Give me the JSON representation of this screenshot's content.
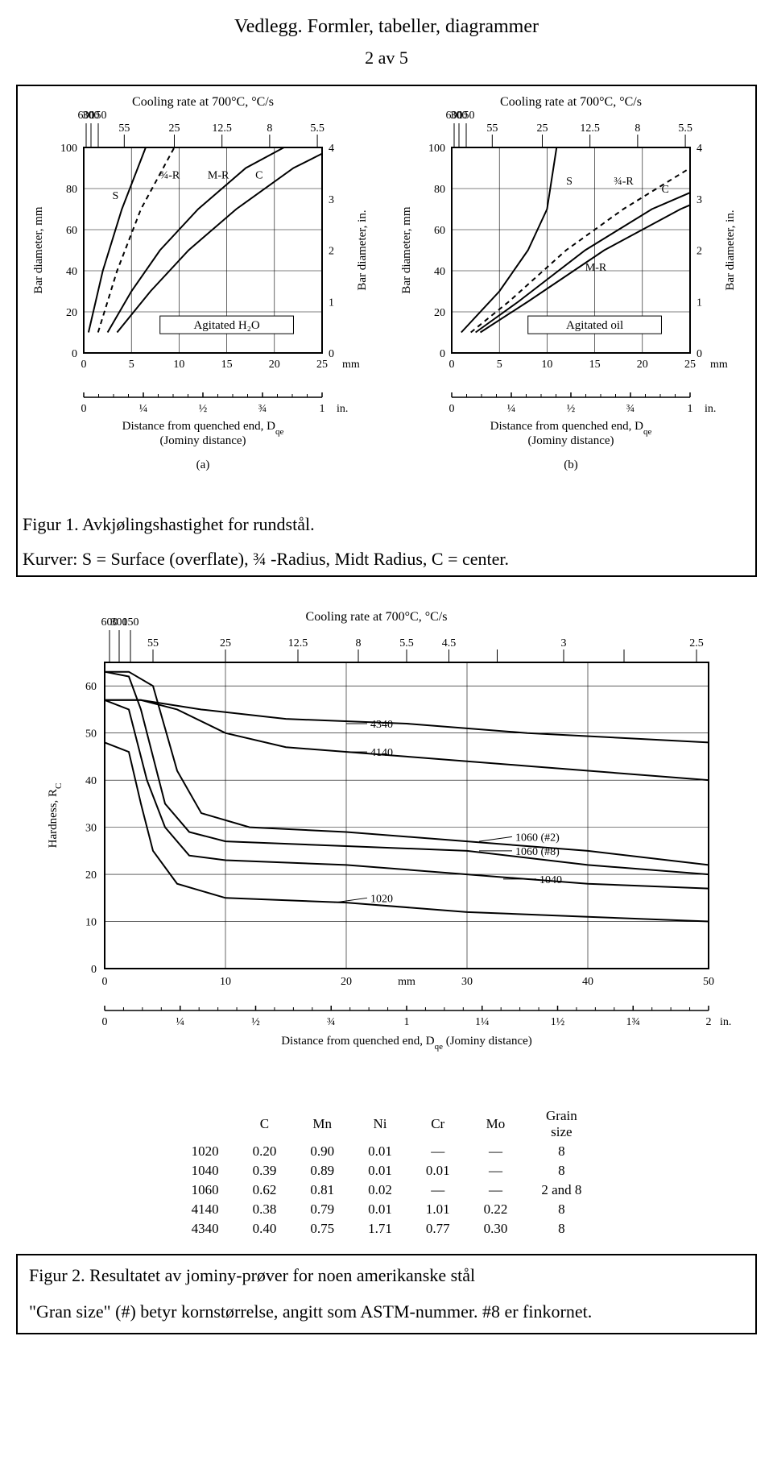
{
  "header": {
    "title": "Vedlegg. Formler, tabeller, diagrammer",
    "page": "2 av 5"
  },
  "figure1": {
    "caption_line1": "Figur 1. Avkjølingshastighet for rundstål.",
    "caption_line2": "Kurver: S = Surface (overflate), ¾ -Radius, Midt Radius, C = center.",
    "chart_a": {
      "type": "line",
      "top_title": "Cooling rate at 700°C, °C/s",
      "top_ticks": [
        "600",
        "300",
        "150",
        "55",
        "25",
        "12.5",
        "8",
        "5.5"
      ],
      "y_left_label": "Bar diameter, mm",
      "y_right_label": "Bar diameter, in.",
      "y_left_ticks": [
        0,
        20,
        40,
        60,
        80,
        100
      ],
      "y_right_ticks": [
        0,
        1,
        2,
        3,
        4
      ],
      "x_ticks_mm": [
        0,
        5,
        10,
        15,
        20,
        25
      ],
      "x_unit_mm": "mm",
      "inset_label": "Agitated H₂O",
      "curve_labels": [
        "S",
        "¾-R",
        "M-R",
        "C"
      ],
      "second_x_ticks": [
        "0",
        "¼",
        "½",
        "¾",
        "1"
      ],
      "second_x_unit": "in.",
      "second_x_title_l1": "Distance from quenched end, D",
      "second_x_title_sub": "qe",
      "second_x_title_l2": "(Jominy distance)",
      "sub_label": "(a)",
      "xlim": [
        0,
        25
      ],
      "ylim": [
        0,
        100
      ],
      "line_color": "#000000",
      "background_color": "#ffffff",
      "grid_color": "#000000",
      "curves": {
        "S": [
          [
            0.5,
            10
          ],
          [
            2,
            40
          ],
          [
            4,
            70
          ],
          [
            6.5,
            100
          ]
        ],
        "3_4R": [
          [
            1.5,
            10
          ],
          [
            3.5,
            40
          ],
          [
            6,
            70
          ],
          [
            9.5,
            100
          ]
        ],
        "MR": [
          [
            2.5,
            10
          ],
          [
            5,
            30
          ],
          [
            8,
            50
          ],
          [
            12,
            70
          ],
          [
            17,
            90
          ],
          [
            21,
            100
          ]
        ],
        "C": [
          [
            3.5,
            10
          ],
          [
            7,
            30
          ],
          [
            11,
            50
          ],
          [
            16,
            70
          ],
          [
            22,
            90
          ],
          [
            25,
            97
          ]
        ]
      }
    },
    "chart_b": {
      "type": "line",
      "top_title": "Cooling rate at 700°C, °C/s",
      "top_ticks": [
        "600",
        "300",
        "150",
        "55",
        "25",
        "12.5",
        "8",
        "5.5"
      ],
      "y_left_label": "Bar diameter, mm",
      "y_right_label": "Bar diameter, in.",
      "y_left_ticks": [
        0,
        20,
        40,
        60,
        80,
        100
      ],
      "y_right_ticks": [
        0,
        1,
        2,
        3,
        4
      ],
      "x_ticks_mm": [
        0,
        5,
        10,
        15,
        20,
        25
      ],
      "x_unit_mm": "mm",
      "inset_label": "Agitated oil",
      "curve_labels": [
        "S",
        "¾-R",
        "M-R",
        "C"
      ],
      "second_x_ticks": [
        "0",
        "¼",
        "½",
        "¾",
        "1"
      ],
      "second_x_unit": "in.",
      "second_x_title_l1": "Distance from quenched end, D",
      "second_x_title_sub": "qe",
      "second_x_title_l2": "(Jominy distance)",
      "sub_label": "(b)",
      "xlim": [
        0,
        25
      ],
      "ylim": [
        0,
        100
      ],
      "line_color": "#000000",
      "background_color": "#ffffff",
      "grid_color": "#000000",
      "curves": {
        "S": [
          [
            1,
            10
          ],
          [
            5,
            30
          ],
          [
            8,
            50
          ],
          [
            10,
            70
          ],
          [
            11,
            100
          ]
        ],
        "3_4R": [
          [
            2,
            10
          ],
          [
            6,
            25
          ],
          [
            12,
            50
          ],
          [
            18,
            70
          ],
          [
            25,
            90
          ]
        ],
        "MR": [
          [
            2.5,
            10
          ],
          [
            7,
            25
          ],
          [
            14,
            50
          ],
          [
            21,
            70
          ],
          [
            25,
            78
          ]
        ],
        "C": [
          [
            3,
            10
          ],
          [
            8,
            25
          ],
          [
            16,
            50
          ],
          [
            24,
            70
          ],
          [
            25,
            72
          ]
        ]
      }
    }
  },
  "figure2": {
    "chart": {
      "type": "line",
      "top_title": "Cooling rate at 700°C, °C/s",
      "top_ticks_left": [
        "600",
        "300",
        "150"
      ],
      "top_ticks": [
        "55",
        "25",
        "12.5",
        "8",
        "5.5",
        "4.5",
        "",
        "3",
        "",
        "2.5"
      ],
      "y_label": "Hardness, R",
      "y_sub": "C",
      "y_ticks": [
        0,
        10,
        20,
        30,
        40,
        50,
        60
      ],
      "x_ticks_mm": [
        0,
        10,
        20,
        30,
        40,
        50
      ],
      "x_unit_mm": "mm",
      "labels_inline": [
        "4340",
        "4140",
        "1060 (#2)",
        "1060 (#8)",
        "1040",
        "1020"
      ],
      "second_x_ticks": [
        "0",
        "¼",
        "½",
        "¾",
        "1",
        "1¼",
        "1½",
        "1¾",
        "2"
      ],
      "second_x_unit": "in.",
      "second_x_title": "Distance from quenched end, D",
      "second_x_title_sub": "qe",
      "second_x_paren": " (Jominy distance)",
      "xlim": [
        0,
        50
      ],
      "ylim": [
        0,
        65
      ],
      "line_color": "#000000",
      "background_color": "#ffffff",
      "grid_color": "#000000",
      "curves": {
        "4340": [
          [
            0,
            57
          ],
          [
            3,
            57
          ],
          [
            8,
            55
          ],
          [
            15,
            53
          ],
          [
            25,
            52
          ],
          [
            35,
            50
          ],
          [
            50,
            48
          ]
        ],
        "4140": [
          [
            0,
            57
          ],
          [
            3,
            57
          ],
          [
            6,
            55
          ],
          [
            10,
            50
          ],
          [
            15,
            47
          ],
          [
            25,
            45
          ],
          [
            35,
            43
          ],
          [
            50,
            40
          ]
        ],
        "1060_2": [
          [
            0,
            63
          ],
          [
            2,
            63
          ],
          [
            4,
            60
          ],
          [
            6,
            42
          ],
          [
            8,
            33
          ],
          [
            12,
            30
          ],
          [
            20,
            29
          ],
          [
            30,
            27
          ],
          [
            40,
            25
          ],
          [
            50,
            22
          ]
        ],
        "1060_8": [
          [
            0,
            63
          ],
          [
            2,
            62
          ],
          [
            3,
            55
          ],
          [
            5,
            35
          ],
          [
            7,
            29
          ],
          [
            10,
            27
          ],
          [
            20,
            26
          ],
          [
            30,
            25
          ],
          [
            40,
            22
          ],
          [
            50,
            20
          ]
        ],
        "1040": [
          [
            0,
            57
          ],
          [
            2,
            55
          ],
          [
            3.5,
            40
          ],
          [
            5,
            30
          ],
          [
            7,
            24
          ],
          [
            10,
            23
          ],
          [
            20,
            22
          ],
          [
            30,
            20
          ],
          [
            40,
            18
          ],
          [
            50,
            17
          ]
        ],
        "1020": [
          [
            0,
            48
          ],
          [
            2,
            46
          ],
          [
            3,
            35
          ],
          [
            4,
            25
          ],
          [
            6,
            18
          ],
          [
            10,
            15
          ],
          [
            20,
            14
          ],
          [
            30,
            12
          ],
          [
            40,
            11
          ],
          [
            50,
            10
          ]
        ]
      }
    },
    "comp_table": {
      "headers": [
        "",
        "C",
        "Mn",
        "Ni",
        "Cr",
        "Mo",
        "Grain size"
      ],
      "rows": [
        [
          "1020",
          "0.20",
          "0.90",
          "0.01",
          "—",
          "—",
          "8"
        ],
        [
          "1040",
          "0.39",
          "0.89",
          "0.01",
          "0.01",
          "—",
          "8"
        ],
        [
          "1060",
          "0.62",
          "0.81",
          "0.02",
          "—",
          "—",
          "2 and 8"
        ],
        [
          "4140",
          "0.38",
          "0.79",
          "0.01",
          "1.01",
          "0.22",
          "8"
        ],
        [
          "4340",
          "0.40",
          "0.75",
          "1.71",
          "0.77",
          "0.30",
          "8"
        ]
      ]
    },
    "caption_line1": "Figur 2. Resultatet av jominy-prøver for noen amerikanske stål",
    "caption_line2": "\"Gran size\" (#) betyr kornstørrelse, angitt som ASTM-nummer. #8 er finkornet."
  }
}
